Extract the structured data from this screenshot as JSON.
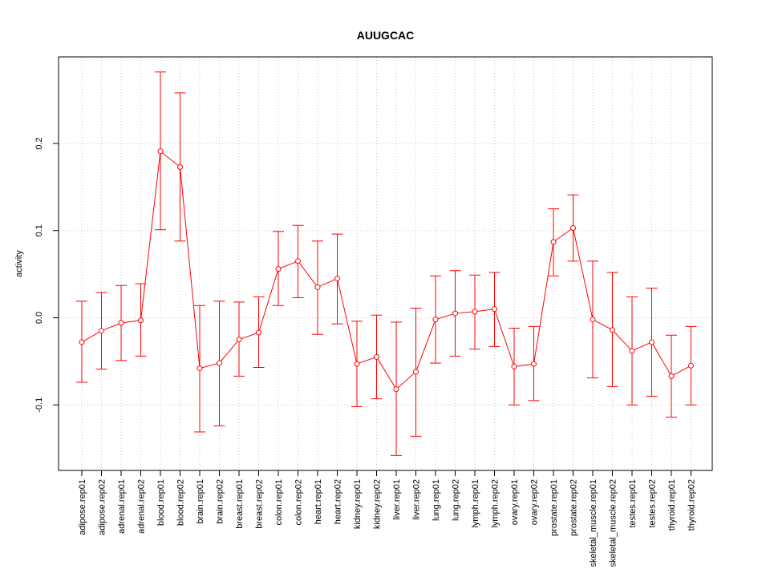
{
  "chart_data": {
    "type": "line",
    "title": "AUUGCAC",
    "xlabel": "",
    "ylabel": "activity",
    "ylim": [
      -0.175,
      0.3
    ],
    "yticks": [
      -0.1,
      0.0,
      0.1,
      0.2
    ],
    "ytick_labels": [
      "-0.1",
      "0.0",
      "0.1",
      "0.2"
    ],
    "grid": true,
    "colors": {
      "series": "#ff0000",
      "grid": "#c8c8c8",
      "frame": "#000000"
    },
    "categories": [
      "adipose.rep01",
      "adipose.rep02",
      "adrenal.rep01",
      "adrenal.rep02",
      "blood.rep01",
      "blood.rep02",
      "brain.rep01",
      "brain.rep02",
      "breast.rep01",
      "breast.rep02",
      "colon.rep01",
      "colon.rep02",
      "heart.rep01",
      "heart.rep02",
      "kidney.rep01",
      "kidney.rep02",
      "liver.rep01",
      "liver.rep02",
      "lung.rep01",
      "lung.rep02",
      "lymph.rep01",
      "lymph.rep02",
      "ovary.rep01",
      "ovary.rep02",
      "prostate.rep01",
      "prostate.rep02",
      "skeletal_muscle.rep01",
      "skeletal_muscle.rep02",
      "testes.rep01",
      "testes.rep02",
      "thyroid.rep01",
      "thyroid.rep02"
    ],
    "values": [
      -0.028,
      -0.015,
      -0.006,
      -0.003,
      0.191,
      0.173,
      -0.058,
      -0.052,
      -0.025,
      -0.017,
      0.056,
      0.065,
      0.035,
      0.045,
      -0.053,
      -0.045,
      -0.082,
      -0.062,
      -0.002,
      0.005,
      0.007,
      0.01,
      -0.056,
      -0.053,
      0.087,
      0.103,
      -0.002,
      -0.014,
      -0.038,
      -0.028,
      -0.067,
      -0.055
    ],
    "upper": [
      0.019,
      0.029,
      0.037,
      0.039,
      0.282,
      0.258,
      0.014,
      0.019,
      0.018,
      0.024,
      0.099,
      0.106,
      0.088,
      0.096,
      -0.004,
      0.003,
      -0.005,
      0.011,
      0.048,
      0.054,
      0.049,
      0.052,
      -0.012,
      -0.01,
      0.125,
      0.141,
      0.065,
      0.052,
      0.024,
      0.034,
      -0.02,
      -0.01
    ],
    "lower": [
      -0.074,
      -0.059,
      -0.049,
      -0.044,
      0.101,
      0.088,
      -0.131,
      -0.124,
      -0.067,
      -0.057,
      0.014,
      0.023,
      -0.019,
      -0.007,
      -0.102,
      -0.093,
      -0.158,
      -0.136,
      -0.052,
      -0.044,
      -0.036,
      -0.033,
      -0.1,
      -0.095,
      0.048,
      0.065,
      -0.069,
      -0.079,
      -0.1,
      -0.09,
      -0.114,
      -0.1
    ]
  }
}
